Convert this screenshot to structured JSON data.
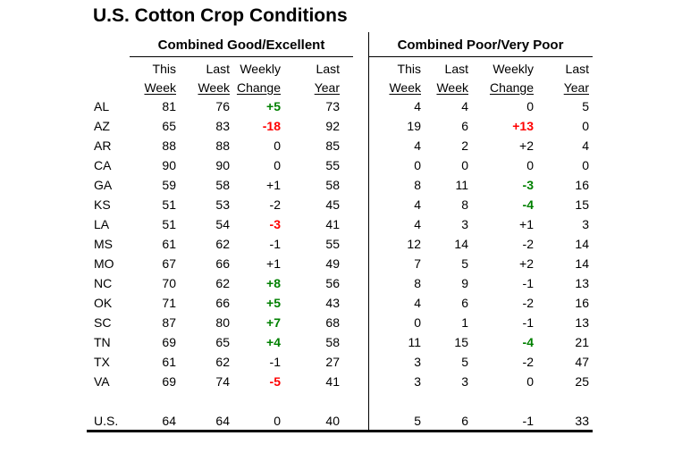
{
  "title": "U.S. Cotton Crop Conditions",
  "sections": [
    {
      "header": "Combined Good/Excellent"
    },
    {
      "header": "Combined Poor/Very Poor"
    }
  ],
  "column_headers": [
    [
      "This",
      "Last",
      "Weekly",
      "Last"
    ],
    [
      "Week",
      "Week",
      "Change",
      "Year"
    ]
  ],
  "colors": {
    "green": "#008000",
    "red": "#ff0000",
    "text": "#000000",
    "rule": "#000000",
    "background": "#ffffff"
  },
  "rows": [
    {
      "state": "AL",
      "ge": {
        "this_week": "81",
        "last_week": "76",
        "weekly_change": "+5",
        "change_color": "green",
        "last_year": "73"
      },
      "pvp": {
        "this_week": "4",
        "last_week": "4",
        "weekly_change": "0",
        "change_color": null,
        "last_year": "5"
      }
    },
    {
      "state": "AZ",
      "ge": {
        "this_week": "65",
        "last_week": "83",
        "weekly_change": "-18",
        "change_color": "red",
        "last_year": "92"
      },
      "pvp": {
        "this_week": "19",
        "last_week": "6",
        "weekly_change": "+13",
        "change_color": "red",
        "last_year": "0"
      }
    },
    {
      "state": "AR",
      "ge": {
        "this_week": "88",
        "last_week": "88",
        "weekly_change": "0",
        "change_color": null,
        "last_year": "85"
      },
      "pvp": {
        "this_week": "4",
        "last_week": "2",
        "weekly_change": "+2",
        "change_color": null,
        "last_year": "4"
      }
    },
    {
      "state": "CA",
      "ge": {
        "this_week": "90",
        "last_week": "90",
        "weekly_change": "0",
        "change_color": null,
        "last_year": "55"
      },
      "pvp": {
        "this_week": "0",
        "last_week": "0",
        "weekly_change": "0",
        "change_color": null,
        "last_year": "0"
      }
    },
    {
      "state": "GA",
      "ge": {
        "this_week": "59",
        "last_week": "58",
        "weekly_change": "+1",
        "change_color": null,
        "last_year": "58"
      },
      "pvp": {
        "this_week": "8",
        "last_week": "11",
        "weekly_change": "-3",
        "change_color": "green",
        "last_year": "16"
      }
    },
    {
      "state": "KS",
      "ge": {
        "this_week": "51",
        "last_week": "53",
        "weekly_change": "-2",
        "change_color": null,
        "last_year": "45"
      },
      "pvp": {
        "this_week": "4",
        "last_week": "8",
        "weekly_change": "-4",
        "change_color": "green",
        "last_year": "15"
      }
    },
    {
      "state": "LA",
      "ge": {
        "this_week": "51",
        "last_week": "54",
        "weekly_change": "-3",
        "change_color": "red",
        "last_year": "41"
      },
      "pvp": {
        "this_week": "4",
        "last_week": "3",
        "weekly_change": "+1",
        "change_color": null,
        "last_year": "3"
      }
    },
    {
      "state": "MS",
      "ge": {
        "this_week": "61",
        "last_week": "62",
        "weekly_change": "-1",
        "change_color": null,
        "last_year": "55"
      },
      "pvp": {
        "this_week": "12",
        "last_week": "14",
        "weekly_change": "-2",
        "change_color": null,
        "last_year": "14"
      }
    },
    {
      "state": "MO",
      "ge": {
        "this_week": "67",
        "last_week": "66",
        "weekly_change": "+1",
        "change_color": null,
        "last_year": "49"
      },
      "pvp": {
        "this_week": "7",
        "last_week": "5",
        "weekly_change": "+2",
        "change_color": null,
        "last_year": "14"
      }
    },
    {
      "state": "NC",
      "ge": {
        "this_week": "70",
        "last_week": "62",
        "weekly_change": "+8",
        "change_color": "green",
        "last_year": "56"
      },
      "pvp": {
        "this_week": "8",
        "last_week": "9",
        "weekly_change": "-1",
        "change_color": null,
        "last_year": "13"
      }
    },
    {
      "state": "OK",
      "ge": {
        "this_week": "71",
        "last_week": "66",
        "weekly_change": "+5",
        "change_color": "green",
        "last_year": "43"
      },
      "pvp": {
        "this_week": "4",
        "last_week": "6",
        "weekly_change": "-2",
        "change_color": null,
        "last_year": "16"
      }
    },
    {
      "state": "SC",
      "ge": {
        "this_week": "87",
        "last_week": "80",
        "weekly_change": "+7",
        "change_color": "green",
        "last_year": "68"
      },
      "pvp": {
        "this_week": "0",
        "last_week": "1",
        "weekly_change": "-1",
        "change_color": null,
        "last_year": "13"
      }
    },
    {
      "state": "TN",
      "ge": {
        "this_week": "69",
        "last_week": "65",
        "weekly_change": "+4",
        "change_color": "green",
        "last_year": "58"
      },
      "pvp": {
        "this_week": "11",
        "last_week": "15",
        "weekly_change": "-4",
        "change_color": "green",
        "last_year": "21"
      }
    },
    {
      "state": "TX",
      "ge": {
        "this_week": "61",
        "last_week": "62",
        "weekly_change": "-1",
        "change_color": null,
        "last_year": "27"
      },
      "pvp": {
        "this_week": "3",
        "last_week": "5",
        "weekly_change": "-2",
        "change_color": null,
        "last_year": "47"
      }
    },
    {
      "state": "VA",
      "ge": {
        "this_week": "69",
        "last_week": "74",
        "weekly_change": "-5",
        "change_color": "red",
        "last_year": "41"
      },
      "pvp": {
        "this_week": "3",
        "last_week": "3",
        "weekly_change": "0",
        "change_color": null,
        "last_year": "25"
      }
    }
  ],
  "us_row": {
    "state": "U.S.",
    "ge": {
      "this_week": "64",
      "last_week": "64",
      "weekly_change": "0",
      "change_color": null,
      "last_year": "40"
    },
    "pvp": {
      "this_week": "5",
      "last_week": "6",
      "weekly_change": "-1",
      "change_color": null,
      "last_year": "33"
    }
  }
}
